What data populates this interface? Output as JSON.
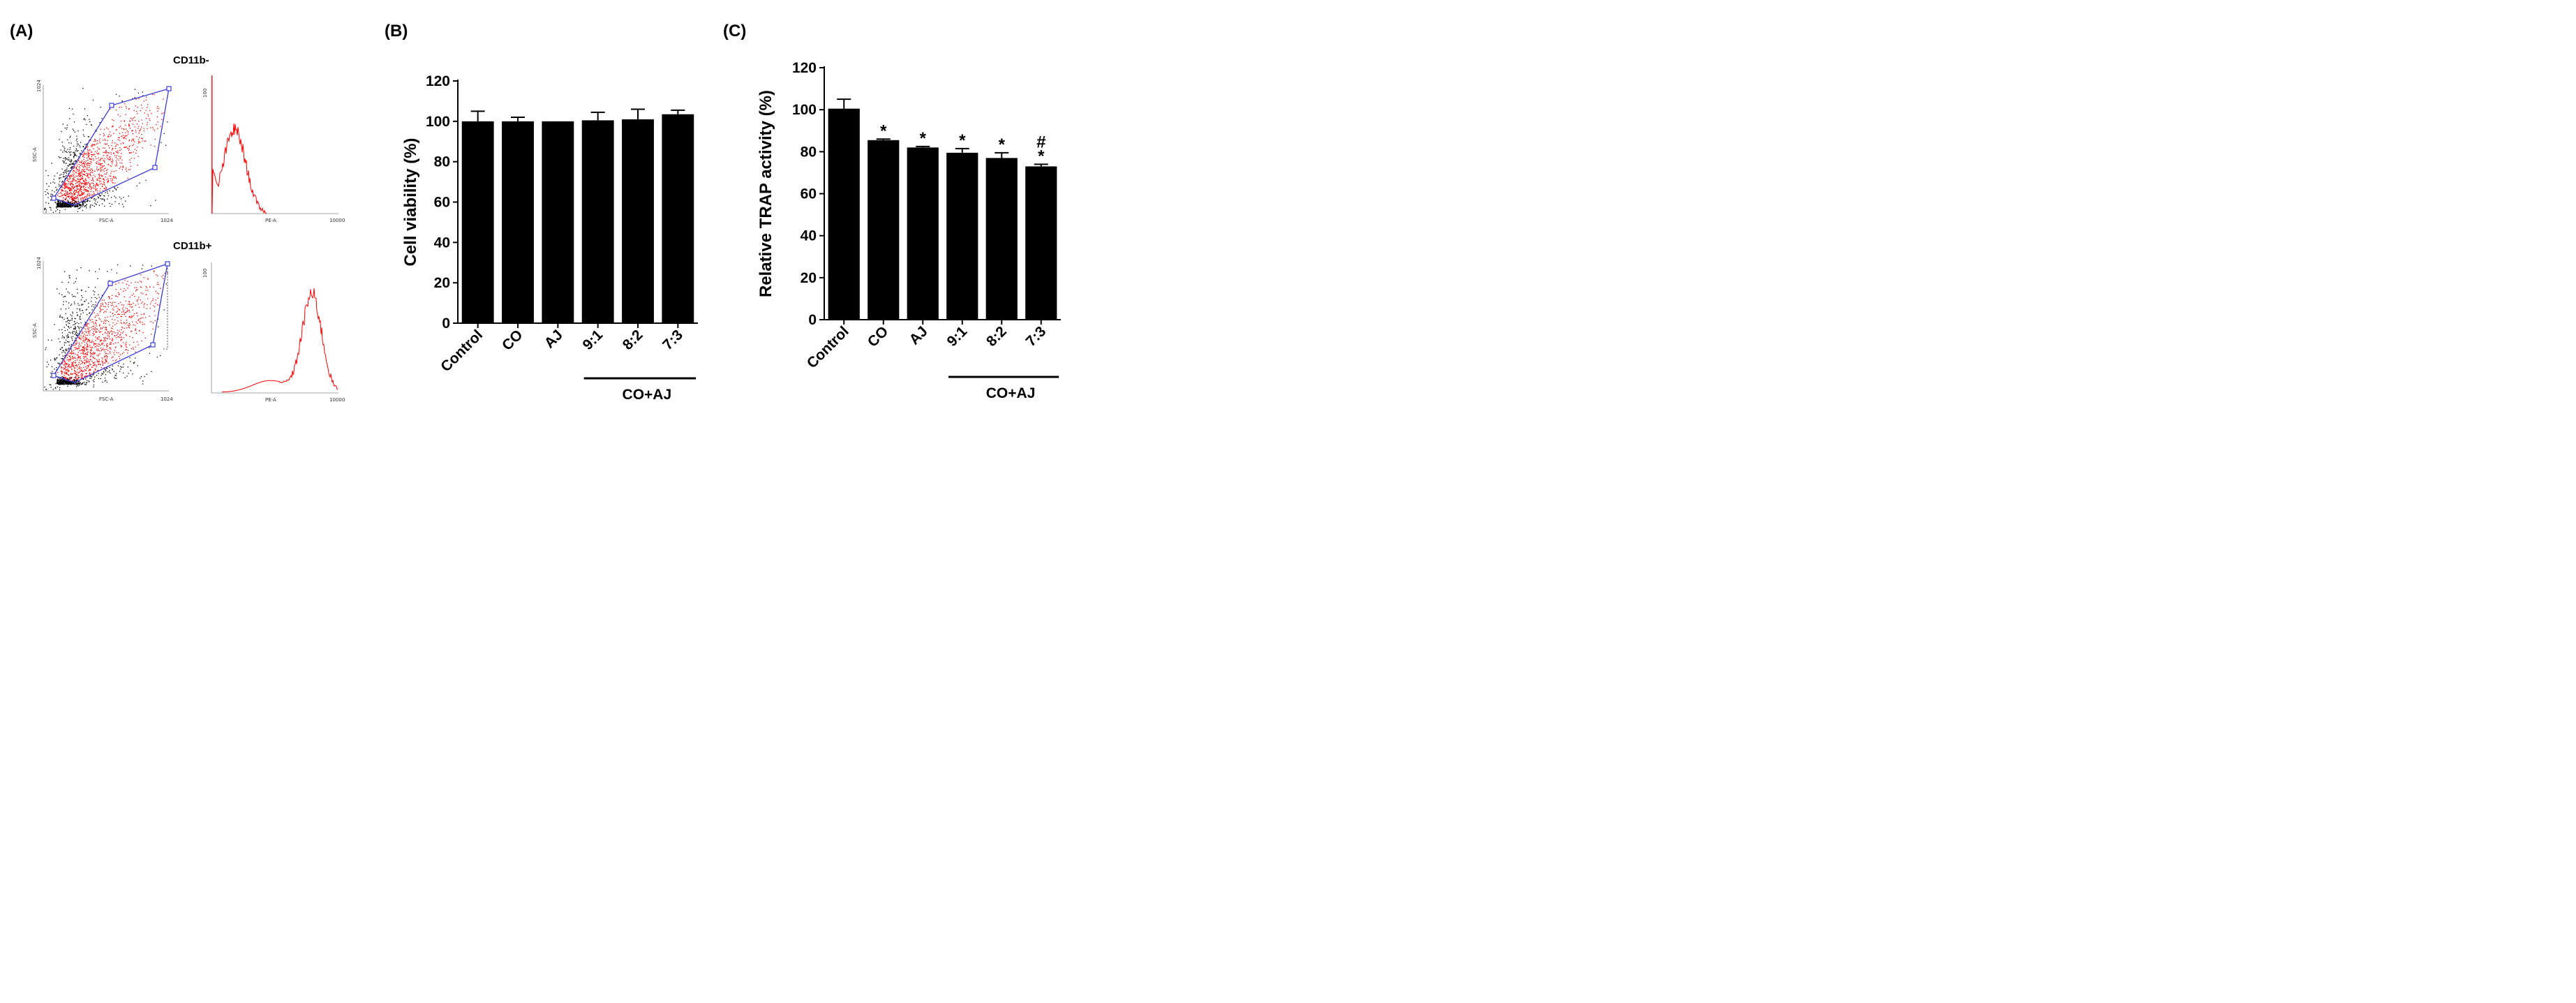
{
  "panels": {
    "a": "(A)",
    "b": "(B)",
    "c": "(C)"
  },
  "flow": {
    "title_top": "CD11b-",
    "title_bottom": "CD11b+",
    "scatter_x_label": "FSC-A",
    "scatter_y_label": "SSC-A",
    "hist_x_label": "PE-A",
    "scatter_y_max": "1024",
    "scatter_x_max": "1024",
    "hist_y_max": "100",
    "hist_x_max": "10000",
    "colors": {
      "gate": "#3b3bdc",
      "events_in": "#ff0000",
      "events_out": "#000000",
      "hist": "#ff0000"
    }
  },
  "chart_data": [
    {
      "type": "bar",
      "panel": "(B)",
      "categories": [
        "Control",
        "CO",
        "AJ",
        "9:1",
        "8:2",
        "7:3"
      ],
      "group": {
        "label": "CO+AJ",
        "members": [
          "9:1",
          "8:2",
          "7:3"
        ]
      },
      "values": [
        100,
        100,
        100,
        100.5,
        101,
        103.5
      ],
      "errors": [
        5,
        2,
        0,
        4,
        5,
        2
      ],
      "ylabel": "Cell viability (%)",
      "ylim": [
        0,
        120
      ],
      "yticks": [
        "0",
        "20",
        "40",
        "60",
        "80",
        "100",
        "120"
      ],
      "bar_color": "#000000",
      "significance": [
        "",
        "",
        "",
        "",
        "",
        ""
      ]
    },
    {
      "type": "bar",
      "panel": "(C)",
      "categories": [
        "Control",
        "CO",
        "AJ",
        "9:1",
        "8:2",
        "7:3"
      ],
      "group": {
        "label": "CO+AJ",
        "members": [
          "9:1",
          "8:2",
          "7:3"
        ]
      },
      "values": [
        100.5,
        85.5,
        82,
        79.5,
        77,
        73
      ],
      "errors": [
        4.5,
        0.5,
        0.5,
        2,
        2.5,
        1
      ],
      "ylabel": "Relative TRAP activity (%)",
      "ylim": [
        0,
        120
      ],
      "yticks": [
        "0",
        "20",
        "40",
        "60",
        "80",
        "100",
        "120"
      ],
      "bar_color": "#000000",
      "significance": [
        "",
        "*",
        "*",
        "*",
        "*",
        "*"
      ],
      "significance2": [
        "",
        "",
        "",
        "",
        "",
        "#"
      ]
    }
  ]
}
